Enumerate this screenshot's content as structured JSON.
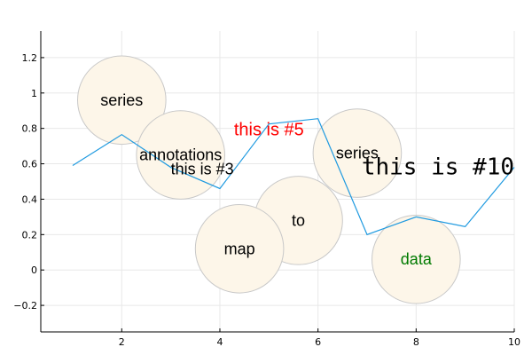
{
  "chart_data": {
    "type": "line",
    "title": "",
    "xlabel": "",
    "ylabel": "",
    "xlim": [
      0.35,
      10
    ],
    "ylim": [
      -0.35,
      1.35
    ],
    "x_ticks": [
      2,
      4,
      6,
      8,
      10
    ],
    "y_ticks": [
      -0.2,
      0,
      0.2,
      0.4,
      0.6,
      0.8,
      1.0,
      1.2
    ],
    "x_tick_labels": [
      "2",
      "4",
      "6",
      "8",
      "10"
    ],
    "y_tick_labels": [
      "−0.2",
      "0",
      "0.2",
      "0.4",
      "0.6",
      "0.8",
      "1",
      "1.2"
    ],
    "grid": true,
    "legend": "none",
    "series": [
      {
        "color": "#1f9ae0",
        "x": [
          1,
          2,
          3,
          4,
          5,
          6,
          7,
          8,
          9,
          10
        ],
        "values": [
          0.59,
          0.765,
          0.58,
          0.46,
          0.825,
          0.855,
          0.2,
          0.3,
          0.245,
          0.58
        ]
      }
    ],
    "bubbles": [
      {
        "x": 2.0,
        "y": 0.96,
        "r": 0.9
      },
      {
        "x": 3.2,
        "y": 0.65,
        "r": 0.9
      },
      {
        "x": 6.8,
        "y": 0.66,
        "r": 0.9
      },
      {
        "x": 5.6,
        "y": 0.28,
        "r": 0.9
      },
      {
        "x": 4.4,
        "y": 0.12,
        "r": 0.9
      },
      {
        "x": 8.0,
        "y": 0.06,
        "r": 0.9
      }
    ],
    "annotations": [
      {
        "text": "series",
        "x": 2.0,
        "y": 0.96,
        "color": "#000000",
        "size": 18,
        "font": "sans",
        "anchor": "middle"
      },
      {
        "text": "annotations",
        "x": 3.2,
        "y": 0.65,
        "color": "#000000",
        "size": 18,
        "font": "sans",
        "anchor": "middle"
      },
      {
        "text": "this is #3",
        "x": 3.0,
        "y": 0.57,
        "color": "#000000",
        "size": 18,
        "font": "sans",
        "anchor": "start"
      },
      {
        "text": "this is #5",
        "x": 5.0,
        "y": 0.79,
        "color": "#ff0000",
        "size": 20,
        "font": "sans",
        "anchor": "middle"
      },
      {
        "text": "series",
        "x": 6.8,
        "y": 0.66,
        "color": "#000000",
        "size": 18,
        "font": "sans",
        "anchor": "middle"
      },
      {
        "text": "this is #10",
        "x": 10.0,
        "y": 0.58,
        "color": "#000000",
        "size": 26,
        "font": "mono",
        "anchor": "end"
      },
      {
        "text": "to",
        "x": 5.6,
        "y": 0.28,
        "color": "#000000",
        "size": 18,
        "font": "sans",
        "anchor": "middle"
      },
      {
        "text": "map",
        "x": 4.4,
        "y": 0.12,
        "color": "#000000",
        "size": 18,
        "font": "sans",
        "anchor": "middle"
      },
      {
        "text": "data",
        "x": 8.0,
        "y": 0.06,
        "color": "#007a00",
        "size": 18,
        "font": "sans",
        "anchor": "middle"
      }
    ]
  }
}
